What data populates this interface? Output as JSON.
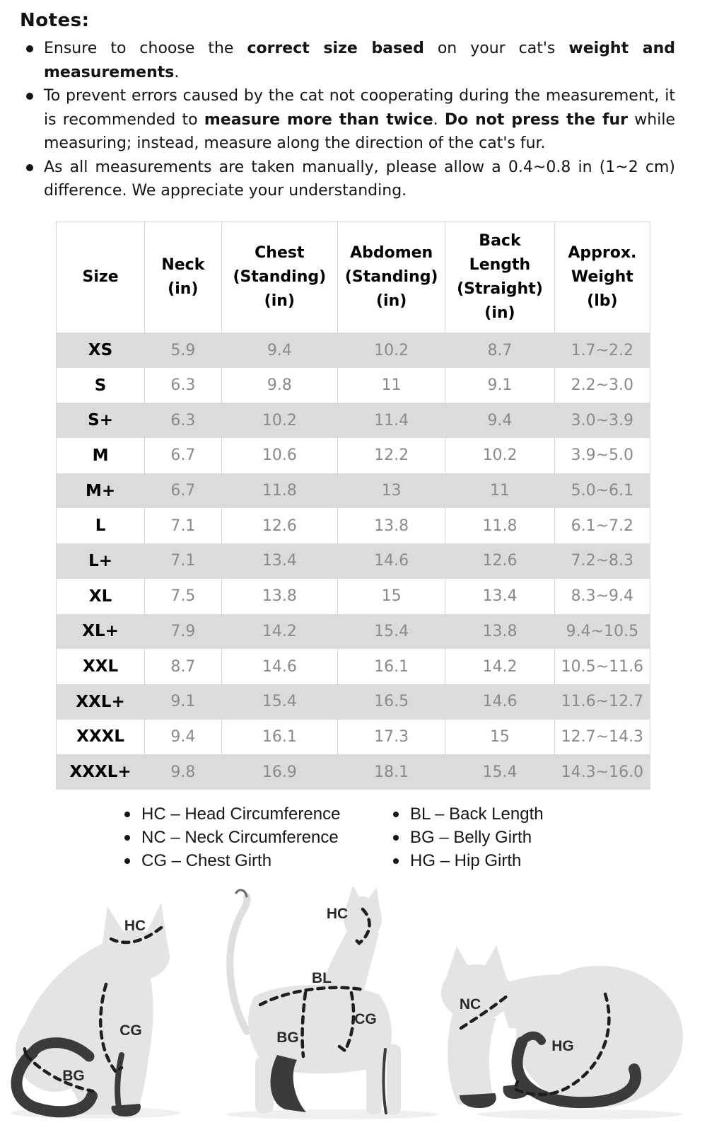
{
  "notes": {
    "title": "Notes:",
    "items": [
      {
        "segments": [
          {
            "text": "Ensure to choose the ",
            "bold": false
          },
          {
            "text": "correct size based",
            "bold": true
          },
          {
            "text": " on your cat's ",
            "bold": false
          },
          {
            "text": "weight and measurements",
            "bold": true
          },
          {
            "text": ".",
            "bold": false
          }
        ]
      },
      {
        "segments": [
          {
            "text": "To prevent errors caused by the cat not cooperating during the measurement, it is recommended to ",
            "bold": false
          },
          {
            "text": "measure more than twice",
            "bold": true
          },
          {
            "text": ". ",
            "bold": false
          },
          {
            "text": "Do not press the fur",
            "bold": true
          },
          {
            "text": " while measuring; instead, measure along the direction of the cat's fur.",
            "bold": false
          }
        ]
      },
      {
        "segments": [
          {
            "text": "As all measurements are taken manually, please allow a 0.4~0.8 in (1~2 cm) difference. We appreciate your understanding.",
            "bold": false
          }
        ]
      }
    ]
  },
  "size_table": {
    "headers": [
      "Size",
      "Neck\n(in)",
      "Chest\n(Standing)\n(in)",
      "Abdomen\n(Standing)\n(in)",
      "Back\nLength\n(Straight)\n(in)",
      "Approx.\nWeight\n(lb)"
    ],
    "rows": [
      [
        "XS",
        "5.9",
        "9.4",
        "10.2",
        "8.7",
        "1.7~2.2"
      ],
      [
        "S",
        "6.3",
        "9.8",
        "11",
        "9.1",
        "2.2~3.0"
      ],
      [
        "S+",
        "6.3",
        "10.2",
        "11.4",
        "9.4",
        "3.0~3.9"
      ],
      [
        "M",
        "6.7",
        "10.6",
        "12.2",
        "10.2",
        "3.9~5.0"
      ],
      [
        "M+",
        "6.7",
        "11.8",
        "13",
        "11",
        "5.0~6.1"
      ],
      [
        "L",
        "7.1",
        "12.6",
        "13.8",
        "11.8",
        "6.1~7.2"
      ],
      [
        "L+",
        "7.1",
        "13.4",
        "14.6",
        "12.6",
        "7.2~8.3"
      ],
      [
        "XL",
        "7.5",
        "13.8",
        "15",
        "13.4",
        "8.3~9.4"
      ],
      [
        "XL+",
        "7.9",
        "14.2",
        "15.4",
        "13.8",
        "9.4~10.5"
      ],
      [
        "XXL",
        "8.7",
        "14.6",
        "16.1",
        "14.2",
        "10.5~11.6"
      ],
      [
        "XXL+",
        "9.1",
        "15.4",
        "16.5",
        "14.6",
        "11.6~12.7"
      ],
      [
        "XXXL",
        "9.4",
        "16.1",
        "17.3",
        "15",
        "12.7~14.3"
      ],
      [
        "XXXL+",
        "9.8",
        "16.9",
        "18.1",
        "15.4",
        "14.3~16.0"
      ]
    ]
  },
  "legend": {
    "left": [
      "HC – Head Circumference",
      "NC – Neck Circumference",
      "CG – Chest Girth"
    ],
    "right": [
      "BL – Back Length",
      "BG – Belly Girth",
      "HG – Hip Girth"
    ]
  },
  "diagram": {
    "cat_sitting": {
      "hc": "HC",
      "cg": "CG",
      "bg": "BG"
    },
    "cat_standing": {
      "hc": "HC",
      "bl": "BL",
      "cg": "CG",
      "bg": "BG"
    },
    "cat_crouching": {
      "nc": "NC",
      "hg": "HG"
    }
  },
  "colors": {
    "row_stripe": "#dbdbdb",
    "table_border": "#d4d4d4",
    "value_text": "#8a8a8a",
    "silhouette": "#e4e4e4",
    "silhouette_dark": "#3b3b3b"
  }
}
